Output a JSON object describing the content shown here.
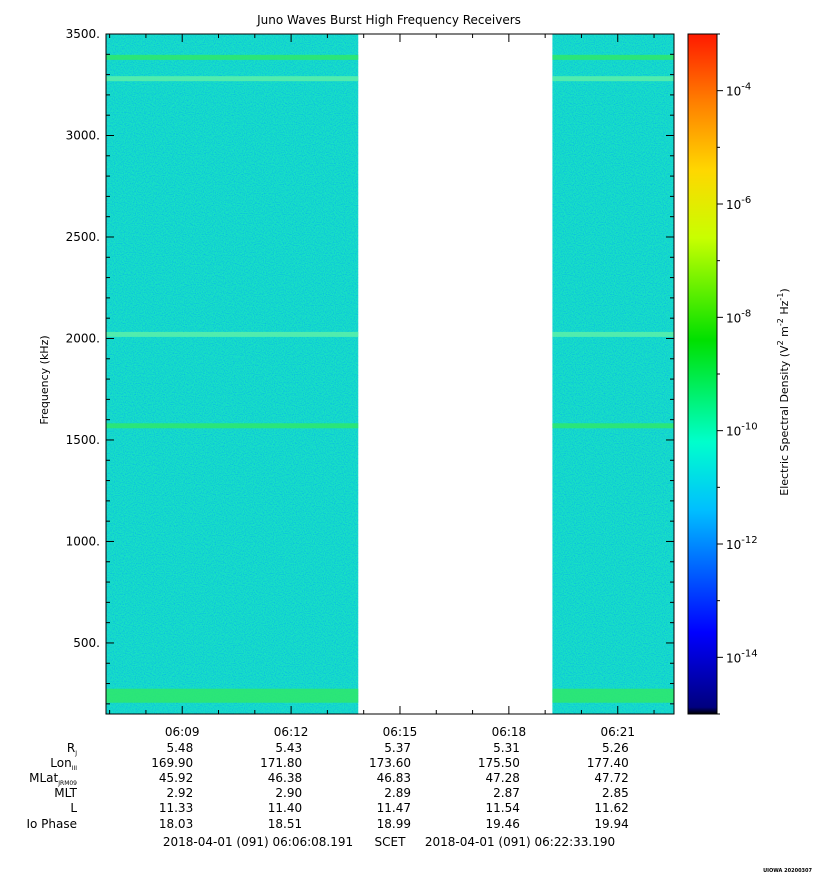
{
  "chart_data": {
    "type": "heatmap",
    "title": "Juno Waves Burst High Frequency Receivers",
    "ylabel": "Frequency (kHz)",
    "ylim": [
      150,
      3500
    ],
    "y_ticks": [
      "3500.",
      "3000.",
      "2500.",
      "2000.",
      "1500.",
      "1000.",
      "500."
    ],
    "y_tick_values": [
      3500,
      3000,
      2500,
      2000,
      1500,
      1000,
      500
    ],
    "x_tick_labels": [
      "06:09",
      "06:12",
      "06:15",
      "06:18",
      "06:21"
    ],
    "x_tick_minutes": [
      9,
      12,
      15,
      18,
      21
    ],
    "time_range_minutes": [
      6.9,
      22.55
    ],
    "data_segments": [
      {
        "start_minute": 6.9,
        "end_minute": 13.85
      },
      {
        "start_minute": 19.2,
        "end_minute": 22.55
      }
    ],
    "bright_bands_khz": [
      3385,
      3280,
      1570,
      2020,
      240
    ],
    "colorbar": {
      "label": "Electric Spectral Density (V² m⁻² Hz⁻¹)",
      "label_base": "Electric Spectral Density (V",
      "label_mid": " m",
      "label_mid2": " Hz",
      "label_end": ")",
      "sup1": "2",
      "sup2": "-2",
      "sup3": "-1",
      "range_log10": [
        -15,
        -3
      ],
      "tick_exponents": [
        -4,
        -6,
        -8,
        -10,
        -12,
        -14
      ],
      "tick_base": "10",
      "tick_exp_labels": [
        "-4",
        "-6",
        "-8",
        "-10",
        "-12",
        "-14"
      ]
    },
    "ephemeris": {
      "rows": [
        {
          "label": "R",
          "sub": "J",
          "values": [
            "5.48",
            "5.43",
            "5.37",
            "5.31",
            "5.26"
          ]
        },
        {
          "label": "Lon",
          "sub": "III",
          "values": [
            "169.90",
            "171.80",
            "173.60",
            "175.50",
            "177.40"
          ]
        },
        {
          "label": "MLat",
          "sub": "JRM09",
          "values": [
            "45.92",
            "46.38",
            "46.83",
            "47.28",
            "47.72"
          ]
        },
        {
          "label": "MLT",
          "sub": "",
          "values": [
            "2.92",
            "2.90",
            "2.89",
            "2.87",
            "2.85"
          ]
        },
        {
          "label": "L",
          "sub": "",
          "values": [
            "11.33",
            "11.40",
            "11.47",
            "11.54",
            "11.62"
          ]
        },
        {
          "label": "Io Phase",
          "sub": "",
          "values": [
            "18.03",
            "18.51",
            "18.99",
            "19.46",
            "19.94"
          ]
        }
      ]
    },
    "time_span": {
      "start": "2018-04-01 (091) 06:06:08.191",
      "mid": "SCET",
      "end": "2018-04-01 (091) 06:22:33.190"
    },
    "footer_stamp": "UIOWA 20200307"
  }
}
